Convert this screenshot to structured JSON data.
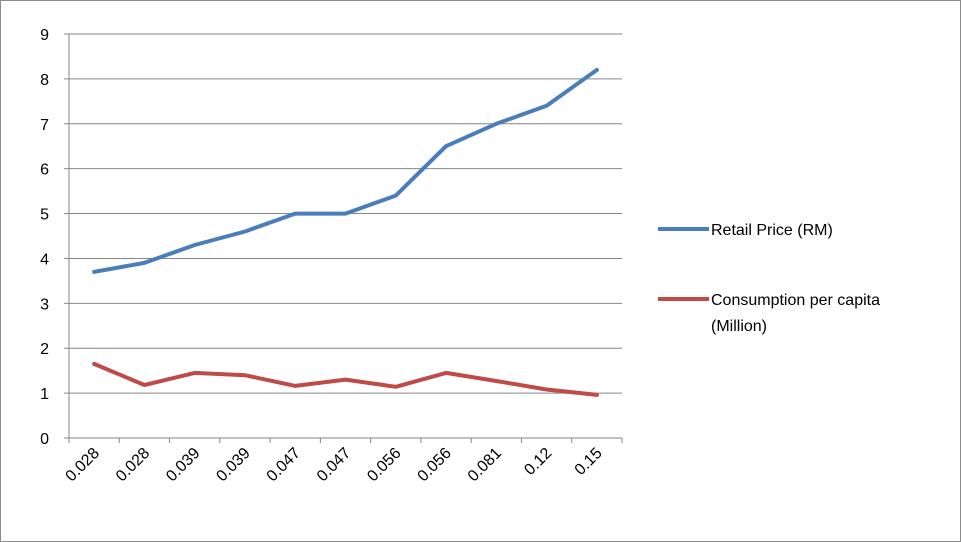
{
  "chart_data": {
    "type": "line",
    "title": "",
    "xlabel": "",
    "ylabel": "",
    "categories": [
      "0.028",
      "0.028",
      "0.039",
      "0.039",
      "0.047",
      "0.047",
      "0.056",
      "0.056",
      "0.081",
      "0.12",
      "0.15"
    ],
    "ylim": [
      0,
      9
    ],
    "yticks": [
      "0",
      "1",
      "2",
      "3",
      "4",
      "5",
      "6",
      "7",
      "8",
      "9"
    ],
    "grid": true,
    "legend_position": "right",
    "series": [
      {
        "name": "Retail Price (RM)",
        "legend_lines": [
          "Retail Price (RM)"
        ],
        "color": "#4a7ebb",
        "values": [
          3.7,
          3.9,
          4.3,
          4.6,
          5.0,
          5.0,
          5.4,
          6.5,
          7.0,
          7.4,
          8.2
        ]
      },
      {
        "name": "Consumption per capita (Million)",
        "legend_lines": [
          "Consumption per capita",
          "(Million)"
        ],
        "color": "#be4b48",
        "values": [
          1.65,
          1.18,
          1.45,
          1.4,
          1.16,
          1.3,
          1.14,
          1.45,
          1.27,
          1.08,
          0.96
        ]
      }
    ]
  }
}
